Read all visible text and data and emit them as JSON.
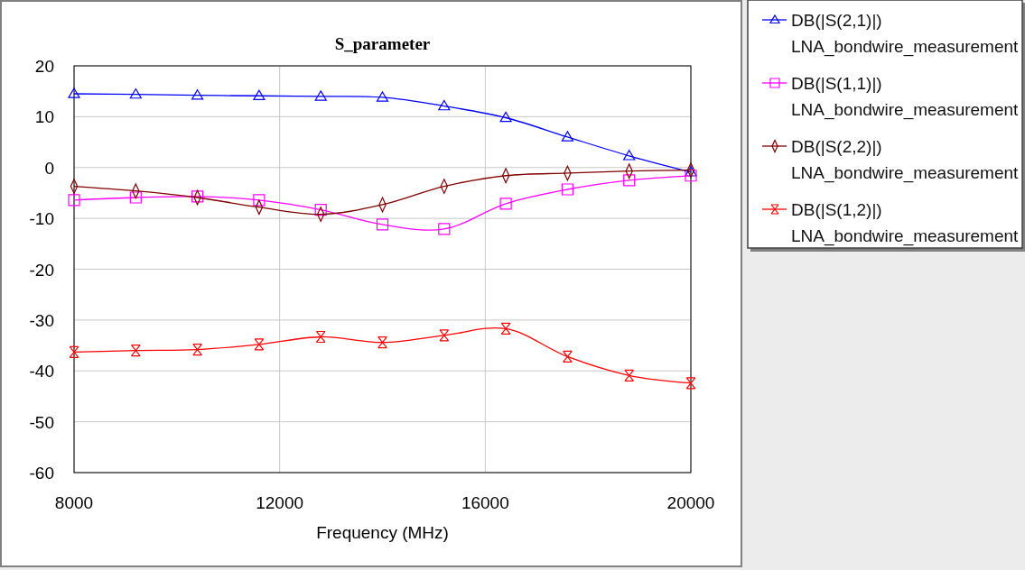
{
  "chart_data": {
    "type": "line",
    "title": "S_parameter",
    "xlabel": "Frequency (MHz)",
    "x": [
      8000,
      9200,
      10400,
      11600,
      12800,
      14000,
      15200,
      16400,
      17600,
      18800,
      20000
    ],
    "series": [
      {
        "name": "DB(|S(2,1)|)\nLNA_bondwire_measurement",
        "color": "#0000ff",
        "marker": "triangle",
        "values": [
          14.5,
          14.4,
          14.2,
          14.1,
          14.0,
          13.8,
          12.1,
          9.8,
          6.0,
          2.3,
          -0.9
        ]
      },
      {
        "name": "DB(|S(1,1)|)\nLNA_bondwire_measurement",
        "color": "#ff00ff",
        "marker": "square",
        "values": [
          -6.4,
          -5.9,
          -5.7,
          -6.4,
          -8.3,
          -11.2,
          -12.1,
          -7.1,
          -4.3,
          -2.5,
          -1.6
        ]
      },
      {
        "name": "DB(|S(2,2)|)\nLNA_bondwire_measurement",
        "color": "#800000",
        "marker": "diamond",
        "values": [
          -3.7,
          -4.6,
          -5.9,
          -7.8,
          -9.2,
          -7.3,
          -3.7,
          -1.6,
          -1.1,
          -0.7,
          -0.5
        ]
      },
      {
        "name": "DB(|S(1,2)|)\nLNA_bondwire_measurement",
        "color": "#ff0000",
        "marker": "cross",
        "values": [
          -36.3,
          -36.0,
          -35.8,
          -34.8,
          -33.3,
          -34.4,
          -33.0,
          -31.7,
          -37.2,
          -40.9,
          -42.4
        ]
      }
    ],
    "xlim": [
      8000,
      20000
    ],
    "xticks": [
      8000,
      12000,
      16000,
      20000
    ],
    "ylim": [
      -60,
      20
    ],
    "yticks": [
      -60,
      -50,
      -40,
      -30,
      -20,
      -10,
      0,
      10,
      20
    ],
    "grid": true,
    "legend": "right"
  }
}
